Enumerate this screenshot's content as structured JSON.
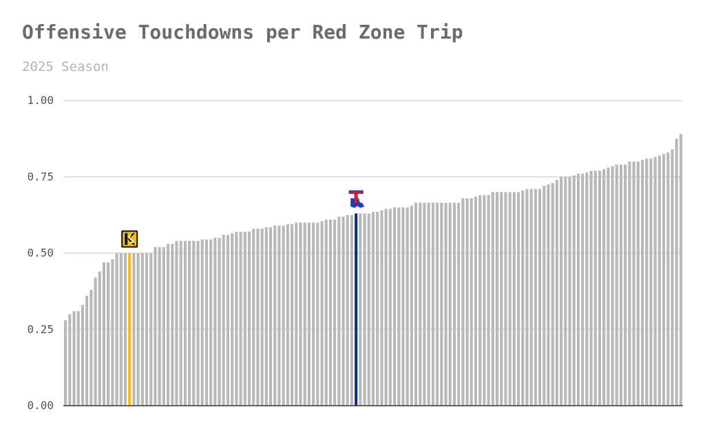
{
  "chart_data": {
    "type": "bar",
    "title": "Offensive Touchdowns per Red Zone Trip",
    "subtitle": "2025 Season",
    "xlabel": "",
    "ylabel": "",
    "ylim": [
      0,
      1
    ],
    "yticks": [
      "0.00",
      "0.25",
      "0.50",
      "0.75",
      "1.00"
    ],
    "ytick_values": [
      0,
      0.25,
      0.5,
      0.75,
      1.0
    ],
    "grid": true,
    "values": [
      0.28,
      0.3,
      0.31,
      0.31,
      0.33,
      0.36,
      0.38,
      0.42,
      0.44,
      0.47,
      0.47,
      0.48,
      0.5,
      0.5,
      0.5,
      0.5,
      0.5,
      0.5,
      0.5,
      0.5,
      0.5,
      0.52,
      0.52,
      0.52,
      0.53,
      0.53,
      0.54,
      0.54,
      0.54,
      0.54,
      0.54,
      0.54,
      0.545,
      0.545,
      0.545,
      0.55,
      0.55,
      0.56,
      0.56,
      0.565,
      0.57,
      0.57,
      0.57,
      0.57,
      0.58,
      0.58,
      0.58,
      0.585,
      0.585,
      0.59,
      0.59,
      0.59,
      0.595,
      0.595,
      0.6,
      0.6,
      0.6,
      0.6,
      0.6,
      0.6,
      0.605,
      0.61,
      0.61,
      0.61,
      0.62,
      0.62,
      0.625,
      0.625,
      0.63,
      0.63,
      0.63,
      0.63,
      0.635,
      0.635,
      0.64,
      0.645,
      0.645,
      0.65,
      0.65,
      0.65,
      0.65,
      0.655,
      0.665,
      0.665,
      0.665,
      0.665,
      0.665,
      0.665,
      0.665,
      0.665,
      0.665,
      0.665,
      0.665,
      0.68,
      0.68,
      0.68,
      0.685,
      0.69,
      0.69,
      0.69,
      0.7,
      0.7,
      0.7,
      0.7,
      0.7,
      0.7,
      0.7,
      0.705,
      0.71,
      0.71,
      0.71,
      0.71,
      0.72,
      0.725,
      0.73,
      0.74,
      0.75,
      0.75,
      0.75,
      0.755,
      0.76,
      0.76,
      0.765,
      0.77,
      0.77,
      0.77,
      0.775,
      0.78,
      0.785,
      0.79,
      0.79,
      0.79,
      0.8,
      0.8,
      0.8,
      0.805,
      0.81,
      0.81,
      0.815,
      0.82,
      0.825,
      0.83,
      0.84,
      0.875,
      0.89
    ],
    "highlights": [
      {
        "index": 15,
        "color": "#f5bd0f",
        "logo": "kennesaw-state-logo"
      },
      {
        "index": 68,
        "color": "#0b2a8c",
        "logo": "louisiana-tech-logo"
      }
    ],
    "bar_color": "#b8b8b8",
    "gridline_color": "#d0d0d0",
    "axis_color": "#333333"
  }
}
